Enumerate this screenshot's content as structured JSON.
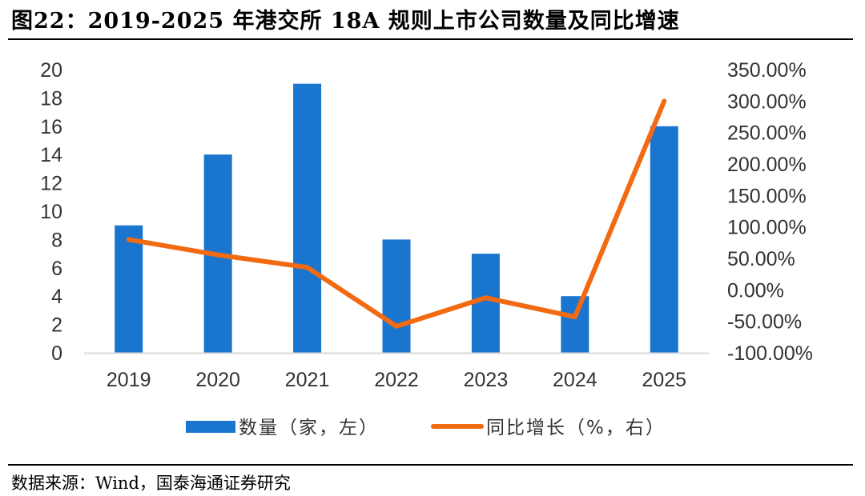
{
  "figure": {
    "title": "图22：2019-2025 年港交所 18A 规则上市公司数量及同比增速",
    "source": "数据来源：Wind，国泰海通证券研究"
  },
  "colors": {
    "bar": "#1A75CF",
    "line": "#F26A12",
    "axis": "#D9D9D9",
    "text": "#333333"
  },
  "chart_data": {
    "type": "bar+line",
    "categories": [
      "2019",
      "2020",
      "2021",
      "2022",
      "2023",
      "2024",
      "2025"
    ],
    "series": [
      {
        "name": "数量（家，左）",
        "type": "bar",
        "axis": "left",
        "values": [
          9,
          14,
          19,
          8,
          7,
          4,
          16
        ]
      },
      {
        "name": "同比增长（%，右）",
        "type": "line",
        "axis": "right",
        "values": [
          80.0,
          55.6,
          35.7,
          -57.9,
          -12.5,
          -42.9,
          300.0
        ]
      }
    ],
    "left_axis": {
      "min": 0,
      "max": 20,
      "step": 2,
      "tick_labels": [
        "0",
        "2",
        "4",
        "6",
        "8",
        "10",
        "12",
        "14",
        "16",
        "18",
        "20"
      ]
    },
    "right_axis": {
      "min": -100,
      "max": 350,
      "step": 50,
      "tick_labels": [
        "-100.00%",
        "-50.00%",
        "0.00%",
        "50.00%",
        "100.00%",
        "150.00%",
        "200.00%",
        "250.00%",
        "300.00%",
        "350.00%"
      ]
    },
    "grid": false,
    "legend_position": "bottom"
  }
}
